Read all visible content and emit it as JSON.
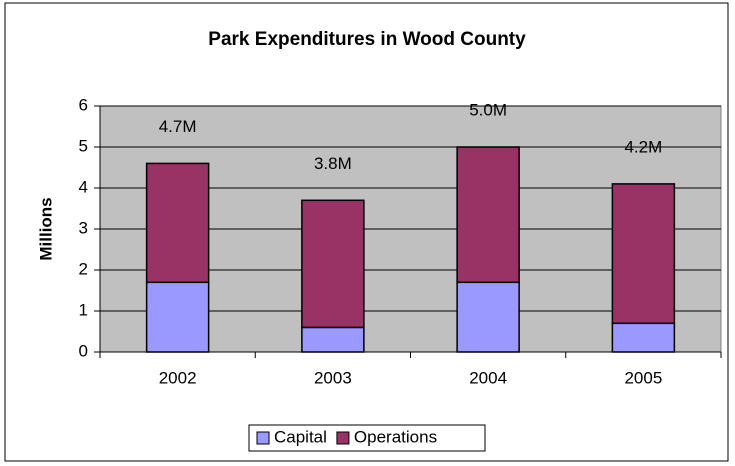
{
  "chart_data": {
    "type": "stacked_bar",
    "title": "Park Expenditures in Wood County",
    "y_label": "Millions",
    "categories": [
      "2002",
      "2003",
      "2004",
      "2005"
    ],
    "series": [
      {
        "name": "Capital",
        "color": "#9999ff",
        "values": [
          1.7,
          0.6,
          1.7,
          0.7
        ]
      },
      {
        "name": "Operations",
        "color": "#993366",
        "values": [
          2.9,
          3.1,
          3.3,
          3.4
        ]
      }
    ],
    "annotations": [
      "4.7M",
      "3.8M",
      "5.0M",
      "4.2M"
    ],
    "ylim": [
      0,
      6
    ],
    "yticks": [
      0,
      1,
      2,
      3,
      4,
      5,
      6
    ],
    "grid": true,
    "legend": "bottom"
  }
}
